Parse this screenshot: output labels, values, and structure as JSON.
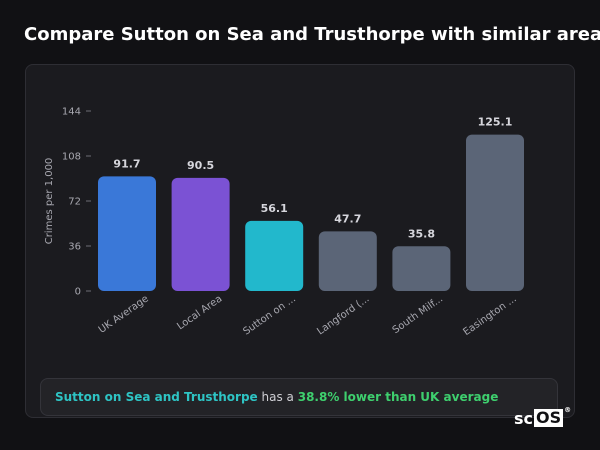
{
  "title": "Compare Sutton on Sea and Trusthorpe with similar areas",
  "chart_data": {
    "type": "bar",
    "ylabel": "Crimes per 1,000",
    "xlabel": "",
    "ylim": [
      0,
      144
    ],
    "yticks": [
      0,
      36,
      72,
      108,
      144
    ],
    "categories": [
      "UK Average",
      "Local Area",
      "Sutton on ...",
      "Langford (...",
      "South Milf...",
      "Easington ..."
    ],
    "values": [
      91.7,
      90.5,
      56.1,
      47.7,
      35.8,
      125.1
    ],
    "value_labels": [
      "91.7",
      "90.5",
      "56.1",
      "47.7",
      "35.8",
      "125.1"
    ],
    "colors": [
      "#3a78d8",
      "#7b52d4",
      "#22b8cc",
      "#5b6577",
      "#5b6577",
      "#5b6577"
    ],
    "grid": false,
    "legend": "none"
  },
  "callout": {
    "area_name": "Sutton on Sea and Trusthorpe",
    "middle_text": " has a ",
    "stat_text": "38.8% lower than UK average"
  },
  "logo": {
    "prefix": "sc",
    "boxed": "OS",
    "mark": "®"
  },
  "colors": {
    "background": "#111114",
    "card": "#1b1b1f",
    "area_highlight": "#2ec4c4",
    "stat_highlight": "#3ecf6e"
  }
}
